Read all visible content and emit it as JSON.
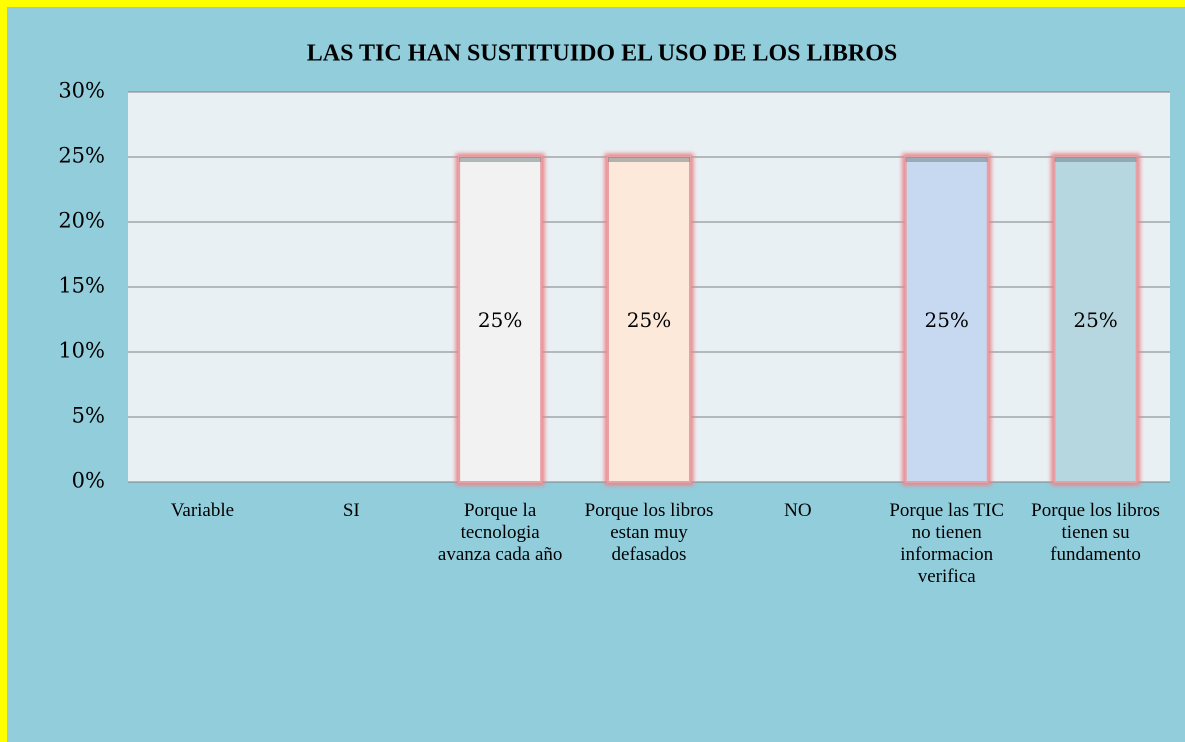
{
  "chart_data": {
    "type": "bar",
    "title": "LAS TIC HAN SUSTITUIDO EL USO DE LOS LIBROS",
    "categories": [
      "Variable",
      "SI",
      "Porque la tecnologia avanza cada año",
      "Porque los libros estan muy defasados",
      "NO",
      "Porque las TIC no tienen informacion verifica",
      "Porque los libros tienen su fundamento"
    ],
    "values": [
      null,
      null,
      25,
      25,
      null,
      25,
      25
    ],
    "value_labels": [
      null,
      null,
      "25%",
      "25%",
      null,
      "25%",
      "25%"
    ],
    "colors": [
      null,
      null,
      "#f2f2f2",
      "#fde9d9",
      null,
      "#c6d9f1",
      "#b7d7e0"
    ],
    "ylim": [
      0,
      30
    ],
    "yticks": [
      {
        "value": 0,
        "label": "0%"
      },
      {
        "value": 5,
        "label": "5%"
      },
      {
        "value": 10,
        "label": "10%"
      },
      {
        "value": 15,
        "label": "15%"
      },
      {
        "value": 20,
        "label": "20%"
      },
      {
        "value": 25,
        "label": "25%"
      },
      {
        "value": 30,
        "label": "30%"
      }
    ],
    "grid": true
  }
}
